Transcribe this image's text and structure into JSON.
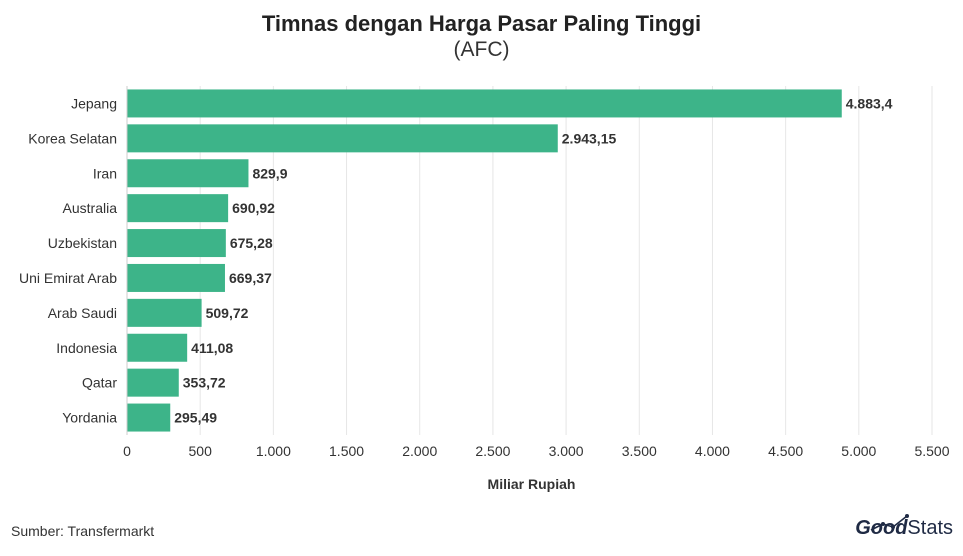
{
  "title": "Timnas dengan Harga Pasar Paling Tinggi",
  "subtitle": "(AFC)",
  "source": "Sumber: Transfermarkt",
  "logo": {
    "part1": "Good",
    "part2": "Stats"
  },
  "colors": {
    "bar": "#3db489",
    "grid": "#e6e6e6",
    "text": "#333333"
  },
  "chart_data": {
    "type": "bar",
    "orientation": "horizontal",
    "categories": [
      "Jepang",
      "Korea Selatan",
      "Iran",
      "Australia",
      "Uzbekistan",
      "Uni Emirat Arab",
      "Arab Saudi",
      "Indonesia",
      "Qatar",
      "Yordania"
    ],
    "values": [
      4883.4,
      2943.15,
      829.9,
      690.92,
      675.28,
      669.37,
      509.72,
      411.08,
      353.72,
      295.49
    ],
    "value_labels": [
      "4.883,4",
      "2.943,15",
      "829,9",
      "690,92",
      "675,28",
      "669,37",
      "509,72",
      "411,08",
      "353,72",
      "295,49"
    ],
    "xlabel": "Miliar Rupiah",
    "xlim": [
      0,
      5500
    ],
    "xticks": [
      0,
      500,
      1000,
      1500,
      2000,
      2500,
      3000,
      3500,
      4000,
      4500,
      5000,
      5500
    ],
    "xtick_labels": [
      "0",
      "500",
      "1.000",
      "1.500",
      "2.000",
      "2.500",
      "3.000",
      "3.500",
      "4.000",
      "4.500",
      "5.000",
      "5.500"
    ],
    "grid": true
  }
}
